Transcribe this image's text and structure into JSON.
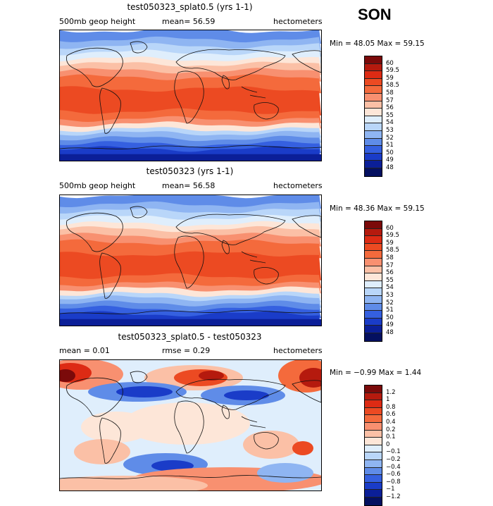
{
  "season": "SON",
  "panels": [
    {
      "title": "test050323_splat0.5 (yrs 1-1)",
      "left_label": "500mb geop height",
      "center_label": "mean=  56.59",
      "units": "hectometers",
      "min_max": "Min =  48.05  Max =  59.15",
      "levels": [
        "60",
        "59.5",
        "59",
        "58.5",
        "58",
        "57",
        "56",
        "55",
        "54",
        "53",
        "52",
        "51",
        "50",
        "49",
        "48"
      ],
      "colors": [
        "#7b0a0a",
        "#b51a0e",
        "#dd2b14",
        "#ec4a22",
        "#f46a3c",
        "#f89070",
        "#fbc0a6",
        "#fde6d8",
        "#dfeefc",
        "#b9d6f9",
        "#8fb5f2",
        "#5f8ce8",
        "#3560e0",
        "#1a3cc8",
        "#0b1f98",
        "#041060"
      ],
      "field_hint": "height"
    },
    {
      "title": "test050323 (yrs 1-1)",
      "left_label": "500mb geop height",
      "center_label": "mean=  56.58",
      "units": "hectometers",
      "min_max": "Min =  48.36  Max =  59.15",
      "levels": [
        "60",
        "59.5",
        "59",
        "58.5",
        "58",
        "57",
        "56",
        "55",
        "54",
        "53",
        "52",
        "51",
        "50",
        "49",
        "48"
      ],
      "colors": [
        "#7b0a0a",
        "#b51a0e",
        "#dd2b14",
        "#ec4a22",
        "#f46a3c",
        "#f89070",
        "#fbc0a6",
        "#fde6d8",
        "#dfeefc",
        "#b9d6f9",
        "#8fb5f2",
        "#5f8ce8",
        "#3560e0",
        "#1a3cc8",
        "#0b1f98",
        "#041060"
      ],
      "field_hint": "height"
    },
    {
      "title": "test050323_splat0.5 - test050323",
      "left_label": "mean =    0.01",
      "center_label": "rmse =    0.29",
      "units": "hectometers",
      "min_max": "Min =  −0.99  Max =   1.44",
      "levels": [
        "1.2",
        "1",
        "0.8",
        "0.6",
        "0.4",
        "0.2",
        "0.1",
        "0",
        "−0.1",
        "−0.2",
        "−0.4",
        "−0.6",
        "−0.8",
        "−1",
        "−1.2"
      ],
      "colors": [
        "#7b0a0a",
        "#b51a0e",
        "#dd2b14",
        "#ec4a22",
        "#f46a3c",
        "#f89070",
        "#fbc0a6",
        "#fde6d8",
        "#dfeefc",
        "#b9d6f9",
        "#8fb5f2",
        "#5f8ce8",
        "#3560e0",
        "#1a3cc8",
        "#0b1f98",
        "#041060"
      ],
      "field_hint": "difference"
    }
  ],
  "chart_data": [
    {
      "type": "heatmap",
      "title": "test050323_splat0.5 (yrs 1-1)",
      "variable": "500mb geop height",
      "units": "hectometers",
      "mean": 56.59,
      "min": 48.05,
      "max": 59.15,
      "contour_levels": [
        48,
        49,
        50,
        51,
        52,
        53,
        54,
        55,
        56,
        57,
        58,
        58.5,
        59,
        59.5,
        60
      ],
      "season": "SON"
    },
    {
      "type": "heatmap",
      "title": "test050323 (yrs 1-1)",
      "variable": "500mb geop height",
      "units": "hectometers",
      "mean": 56.58,
      "min": 48.36,
      "max": 59.15,
      "contour_levels": [
        48,
        49,
        50,
        51,
        52,
        53,
        54,
        55,
        56,
        57,
        58,
        58.5,
        59,
        59.5,
        60
      ],
      "season": "SON"
    },
    {
      "type": "heatmap",
      "title": "test050323_splat0.5 - test050323",
      "units": "hectometers",
      "mean": 0.01,
      "rmse": 0.29,
      "min": -0.99,
      "max": 1.44,
      "contour_levels": [
        -1.2,
        -1,
        -0.8,
        -0.6,
        -0.4,
        -0.2,
        -0.1,
        0,
        0.1,
        0.2,
        0.4,
        0.6,
        0.8,
        1,
        1.2
      ],
      "season": "SON"
    }
  ]
}
